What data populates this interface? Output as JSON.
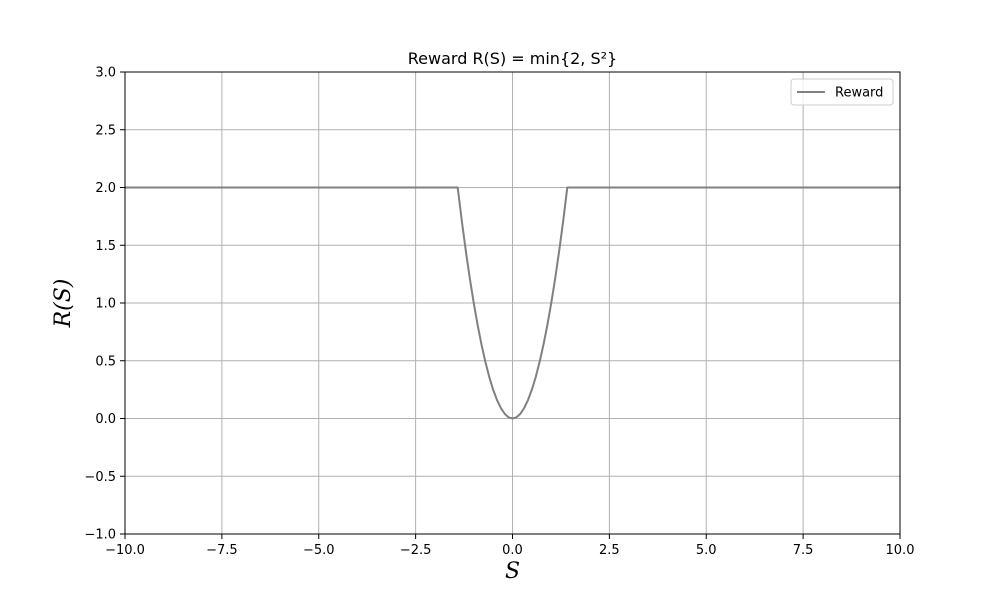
{
  "chart_data": {
    "type": "line",
    "title": "Reward R(S) = min{2, S²}",
    "xlabel": "S",
    "ylabel": "R(S)",
    "xlim": [
      -10,
      10
    ],
    "ylim": [
      -1,
      3
    ],
    "xticks": [
      -10.0,
      -7.5,
      -5.0,
      -2.5,
      0.0,
      2.5,
      5.0,
      7.5,
      10.0
    ],
    "xtick_labels": [
      "−10.0",
      "−7.5",
      "−5.0",
      "−2.5",
      "0.0",
      "2.5",
      "5.0",
      "7.5",
      "10.0"
    ],
    "yticks": [
      -1.0,
      -0.5,
      0.0,
      0.5,
      1.0,
      1.5,
      2.0,
      2.5,
      3.0
    ],
    "ytick_labels": [
      "−1.0",
      "−0.5",
      "0.0",
      "0.5",
      "1.0",
      "1.5",
      "2.0",
      "2.5",
      "3.0"
    ],
    "grid": true,
    "legend_position": "top-right",
    "series": [
      {
        "name": "Reward",
        "color": "#808080",
        "x": [
          -10,
          -1.4142,
          -1.3,
          -1.2,
          -1.1,
          -1.0,
          -0.9,
          -0.8,
          -0.7,
          -0.6,
          -0.5,
          -0.4,
          -0.3,
          -0.2,
          -0.1,
          0.0,
          0.1,
          0.2,
          0.3,
          0.4,
          0.5,
          0.6,
          0.7,
          0.8,
          0.9,
          1.0,
          1.1,
          1.2,
          1.3,
          1.4142,
          10
        ],
        "y": [
          2,
          2,
          1.69,
          1.44,
          1.21,
          1.0,
          0.81,
          0.64,
          0.49,
          0.36,
          0.25,
          0.16,
          0.09,
          0.04,
          0.01,
          0.0,
          0.01,
          0.04,
          0.09,
          0.16,
          0.25,
          0.36,
          0.49,
          0.64,
          0.81,
          1.0,
          1.21,
          1.44,
          1.69,
          2,
          2
        ]
      }
    ]
  },
  "colors": {
    "grid": "#b0b0b0",
    "axes": "#000000",
    "legend_border": "#cccccc"
  }
}
